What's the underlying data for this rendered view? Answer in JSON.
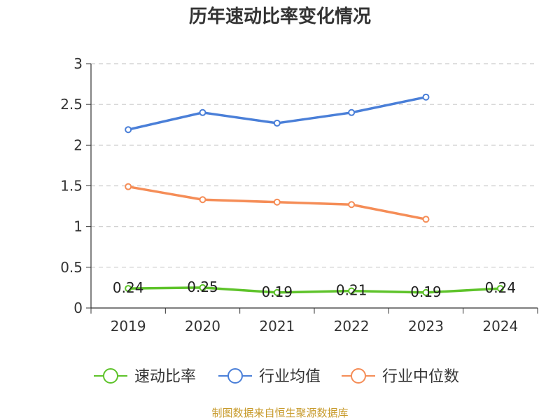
{
  "chart_data": {
    "type": "line",
    "title": "历年速动比率变化情况",
    "categories": [
      "2019",
      "2020",
      "2021",
      "2022",
      "2023",
      "2024"
    ],
    "ylim": [
      0,
      3
    ],
    "yticks": [
      "0",
      "0.5",
      "1",
      "1.5",
      "2",
      "2.5",
      "3"
    ],
    "ytick_values": [
      0,
      0.5,
      1,
      1.5,
      2,
      2.5,
      3
    ],
    "grid": true,
    "legend_position": "bottom",
    "series": [
      {
        "name": "速动比率",
        "color": "#5ec32a",
        "values": [
          0.24,
          0.25,
          0.19,
          0.21,
          0.19,
          0.24
        ],
        "labels": [
          "0.24",
          "0.25",
          "0.19",
          "0.21",
          "0.19",
          "0.24"
        ]
      },
      {
        "name": "行业均值",
        "color": "#4a7fd8",
        "values": [
          2.19,
          2.4,
          2.27,
          2.4,
          2.59,
          null
        ]
      },
      {
        "name": "行业中位数",
        "color": "#f58d57",
        "values": [
          1.49,
          1.33,
          1.3,
          1.27,
          1.09,
          null
        ]
      }
    ]
  },
  "source": {
    "text": "制图数据来自恒生聚源数据库",
    "color": "#c79a2a"
  }
}
